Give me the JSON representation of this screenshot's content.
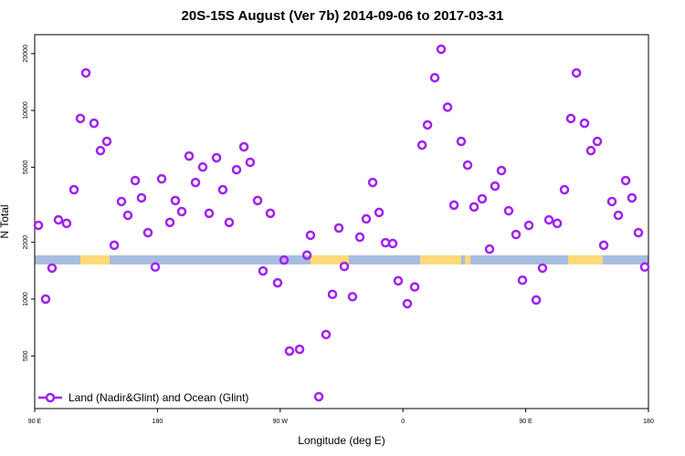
{
  "chart_data": {
    "type": "scatter",
    "title": "20S-15S August (Ver 7b)   2014-09-06 to 2017-03-31",
    "x_label": "Longitude (deg E)",
    "y_label": "N Total",
    "y_log": true,
    "legend_position": "bottom-left",
    "xlim": [
      90,
      540
    ],
    "ylim": [
      263,
      25200
    ],
    "xticks": [
      {
        "value": 90,
        "label": "90 E"
      },
      180,
      {
        "value": 270,
        "label": "90 W"
      },
      {
        "value": 360,
        "label": "0"
      },
      {
        "value": 450,
        "label": "90 E"
      },
      {
        "value": 540,
        "label": "180"
      }
    ],
    "yticks": [
      500,
      1000,
      2000,
      5000,
      10000,
      20000
    ],
    "series": [
      {
        "name": "Land (Nadir&Glint) and Ocean (Glint)",
        "color": "#a020f0",
        "x": [
          92.7,
          98,
          102.7,
          107.4,
          113.4,
          118.8,
          123.5,
          127.5,
          133.5,
          138.2,
          142.9,
          148.3,
          153.6,
          158.3,
          163.7,
          168.3,
          173,
          178.4,
          183.1,
          189.1,
          193.1,
          197.8,
          203.2,
          207.9,
          213.2,
          217.9,
          223.3,
          227.9,
          232.6,
          238,
          243.4,
          248,
          253.4,
          257.4,
          262.8,
          268.1,
          272.8,
          276.8,
          284.2,
          289.6,
          292.2,
          298.3,
          303.6,
          308.3,
          313,
          317,
          323,
          328.4,
          333.1,
          337.8,
          342.5,
          347.2,
          352.5,
          356.5,
          363.2,
          368.6,
          374,
          378,
          383.3,
          388,
          392.7,
          397.4,
          402.7,
          407.4,
          412.1,
          418.1,
          423.5,
          427.5,
          432.2,
          437.5,
          442.9,
          447.6,
          452.3,
          457.7,
          462.3,
          467,
          473.1,
          478.4,
          483.1,
          487.2,
          493.1,
          497.8,
          502.5,
          507.2,
          513.2,
          517.9,
          523.3,
          527.9,
          532.6,
          537.3
        ],
        "values": [
          2460,
          1000,
          1460,
          2630,
          2520,
          3800,
          9060,
          15800,
          8550,
          6120,
          6850,
          1930,
          3290,
          2780,
          4250,
          3440,
          2250,
          1480,
          4340,
          2550,
          3330,
          2910,
          5730,
          4150,
          5010,
          2850,
          5610,
          3800,
          2550,
          4850,
          6410,
          5310,
          3330,
          1410,
          2850,
          1220,
          1610,
          531,
          542,
          1710,
          2180,
          304,
          649,
          1060,
          2380,
          1490,
          1030,
          2130,
          2660,
          4150,
          2880,
          1990,
          1970,
          1250,
          946,
          1160,
          6550,
          8380,
          14900,
          21100,
          10400,
          3150,
          6850,
          5130,
          3080,
          3400,
          1840,
          3970,
          4800,
          2940,
          2200,
          1260,
          2460,
          990,
          1460,
          2630,
          2520,
          3800,
          9060,
          15800,
          8550,
          6120,
          6850,
          1930,
          3290,
          2780,
          4250,
          3440,
          2250,
          1480
        ]
      }
    ]
  }
}
